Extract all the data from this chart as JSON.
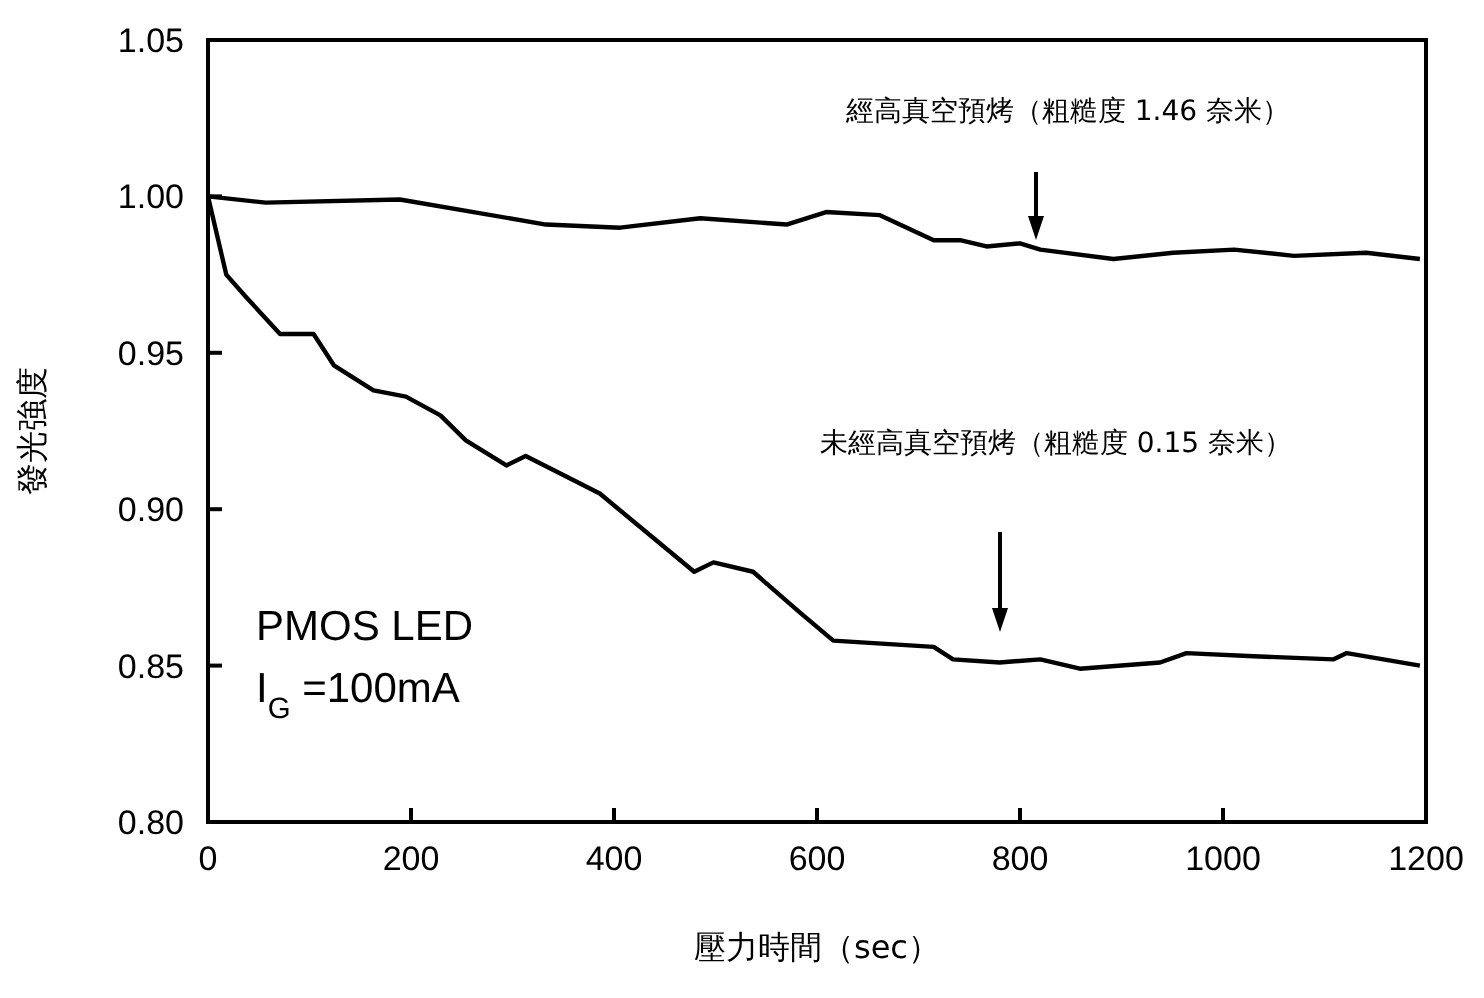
{
  "chart_data": {
    "type": "line",
    "xlabel": "壓力時間（sec）",
    "ylabel": "發光強度",
    "xlim": [
      0,
      1200
    ],
    "xticks": [
      0,
      200,
      400,
      600,
      800,
      1000,
      1200
    ],
    "ylim": [
      0.8,
      1.05
    ],
    "yticks": [
      {
        "value": 0.8,
        "label": "0.80"
      },
      {
        "value": 0.85,
        "label": "0.85"
      },
      {
        "value": 0.9,
        "label": "0.90"
      },
      {
        "value": 0.95,
        "label": "0.95"
      },
      {
        "value": 1,
        "label": "1.00"
      },
      {
        "value": 1.05,
        "label": "1.05"
      }
    ],
    "grid": false,
    "marker": "none",
    "line_style": "solid",
    "series": [
      {
        "color": "#000000",
        "x": [
          0,
          57,
          189,
          333,
          406,
          485,
          570,
          609,
          662,
          715,
          741,
          767,
          800,
          820,
          892,
          951,
          1011,
          1070,
          1141,
          1194
        ],
        "values": [
          1.0,
          0.998,
          0.999,
          0.991,
          0.99,
          0.993,
          0.991,
          0.995,
          0.994,
          0.986,
          0.986,
          0.984,
          0.985,
          0.983,
          0.98,
          0.982,
          0.983,
          0.981,
          0.982,
          0.98
        ]
      },
      {
        "color": "#000000",
        "x": [
          0,
          18,
          37,
          71,
          104,
          124,
          163,
          195,
          229,
          254,
          294,
          313,
          386,
          479,
          498,
          537,
          583,
          616,
          715,
          734,
          780,
          820,
          859,
          938,
          964,
          1030,
          1109,
          1122,
          1194
        ],
        "values": [
          1.0,
          0.975,
          0.968,
          0.956,
          0.956,
          0.946,
          0.938,
          0.936,
          0.93,
          0.922,
          0.914,
          0.917,
          0.905,
          0.88,
          0.883,
          0.88,
          0.867,
          0.858,
          0.856,
          0.852,
          0.851,
          0.852,
          0.849,
          0.851,
          0.854,
          0.853,
          0.852,
          0.854,
          0.85
        ]
      }
    ],
    "annotations": [
      "經高真空預烤（粗糙度 1.46 奈米）",
      "未經高真空預烤（粗糙度 0.15 奈米）",
      "PMOS LED",
      "I$_{G}$ =100mA"
    ]
  }
}
